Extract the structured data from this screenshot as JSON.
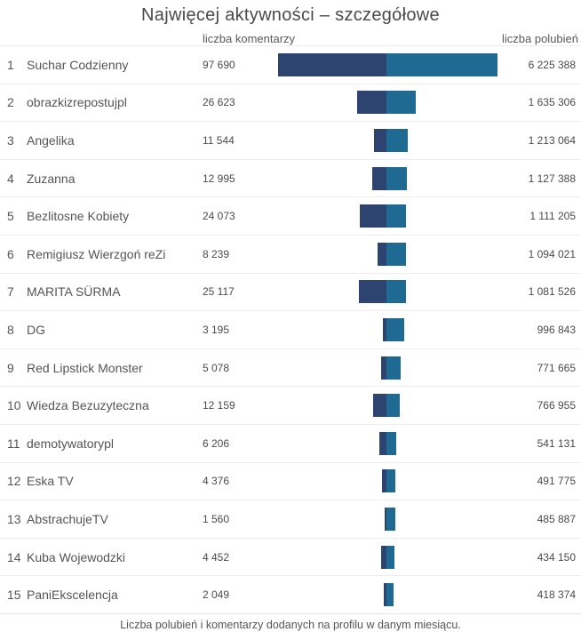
{
  "chart_data": {
    "type": "bar",
    "orientation": "horizontal-diverging",
    "title": "Najwięcej aktywności – szczegółowe",
    "caption": "Liczba polubień i komentarzy dodanych na profilu w danym miesiącu.",
    "legend_position": "column-headers",
    "grid": false,
    "ranks": [
      "1",
      "2",
      "3",
      "4",
      "5",
      "6",
      "7",
      "8",
      "9",
      "10",
      "11",
      "12",
      "13",
      "14",
      "15"
    ],
    "categories": [
      "Suchar Codzienny",
      "obrazkizrepostujpl",
      "Angelika",
      "Zuzanna",
      "Bezlitosne Kobiety",
      "Remigiusz Wierzgoń reZi",
      "MARITA SÜRMA",
      "DG",
      "Red Lipstick Monster",
      "Wiedza Bezuzyteczna",
      "demotywatorypl",
      "Eska TV",
      "AbstrachujeTV",
      "Kuba Wojewodzki",
      "PaniEkscelencja"
    ],
    "series": [
      {
        "name": "liczba komentarzy",
        "side": "left",
        "color": "#2d4370",
        "values": [
          97690,
          26623,
          11544,
          12995,
          24073,
          8239,
          25117,
          3195,
          5078,
          12159,
          6206,
          4376,
          1560,
          4452,
          2049
        ],
        "labels": [
          "97 690",
          "26 623",
          "11 544",
          "12 995",
          "24 073",
          "8 239",
          "25 117",
          "3 195",
          "5 078",
          "12 159",
          "6 206",
          "4 376",
          "1 560",
          "4 452",
          "2 049"
        ]
      },
      {
        "name": "liczba polubień",
        "side": "right",
        "color": "#1e6a93",
        "values": [
          6225388,
          1635306,
          1213064,
          1127388,
          1111205,
          1094021,
          1081526,
          996843,
          771665,
          766955,
          541131,
          491775,
          485887,
          434150,
          418374
        ],
        "labels": [
          "6 225 388",
          "1 635 306",
          "1 213 064",
          "1 127 388",
          "1 111 205",
          "1 094 021",
          "1 081 526",
          "996 843",
          "771 665",
          "766 955",
          "541 131",
          "491 775",
          "485 887",
          "434 150",
          "418 374"
        ]
      }
    ]
  }
}
